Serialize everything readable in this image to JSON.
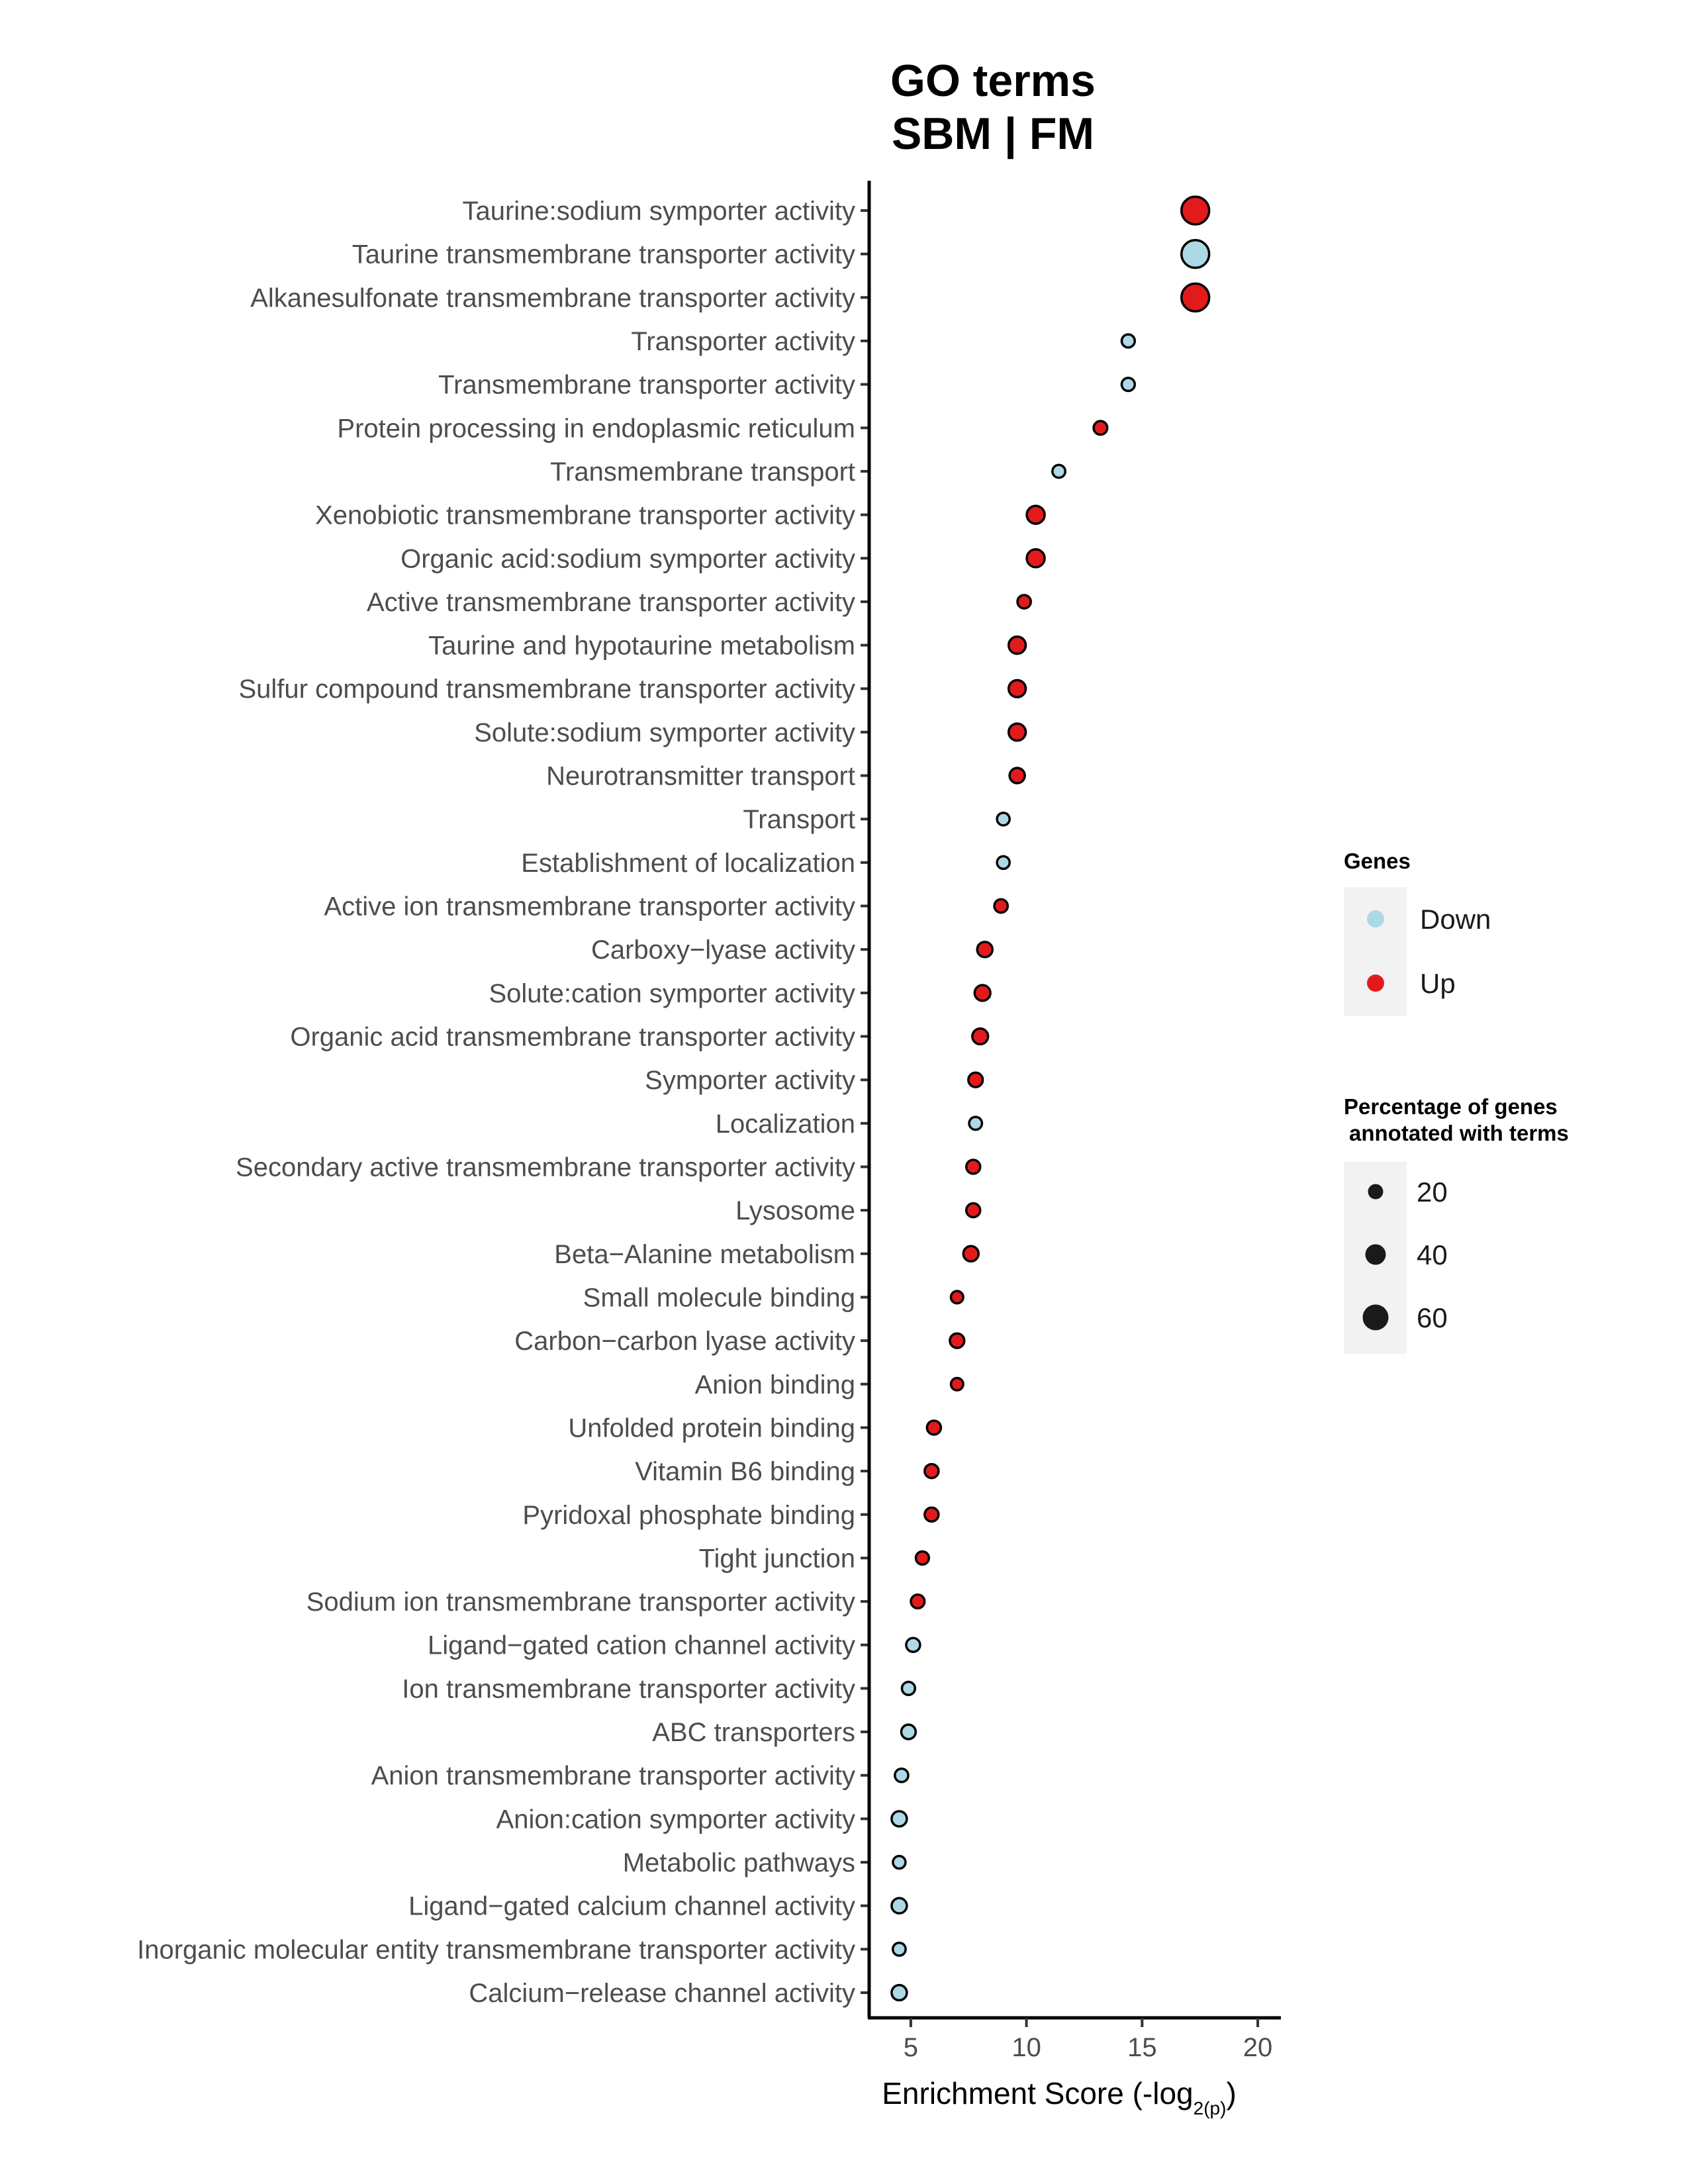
{
  "chart_data": {
    "type": "scatter",
    "title": [
      "GO terms",
      "SBM | FM"
    ],
    "xlabel_main": "Enrichment Score (-log",
    "xlabel_sub": "2(p)",
    "xlabel_end": ")",
    "xlim": [
      3.2,
      21
    ],
    "xticks": [
      5,
      10,
      15,
      20
    ],
    "colors": {
      "Down": "#add8e6",
      "Up": "#e31a1c"
    },
    "legend_color": {
      "title": "Genes",
      "entries": [
        "Down",
        "Up"
      ]
    },
    "legend_size": {
      "title_line1": "Percentage of genes",
      "title_line2": "annotated with terms",
      "entries": [
        20,
        40,
        60
      ]
    },
    "terms": [
      {
        "label": "Taurine:sodium symporter activity",
        "score": 17.3,
        "group": "Up",
        "pct": 67
      },
      {
        "label": "Taurine transmembrane transporter activity",
        "score": 17.3,
        "group": "Down",
        "pct": 67
      },
      {
        "label": "Alkanesulfonate transmembrane transporter activity",
        "score": 17.3,
        "group": "Up",
        "pct": 67
      },
      {
        "label": "Transporter activity",
        "score": 14.4,
        "group": "Down",
        "pct": 12
      },
      {
        "label": "Transmembrane transporter activity",
        "score": 14.4,
        "group": "Down",
        "pct": 12
      },
      {
        "label": "Protein processing in endoplasmic reticulum",
        "score": 13.2,
        "group": "Up",
        "pct": 14
      },
      {
        "label": "Transmembrane transport",
        "score": 11.4,
        "group": "Down",
        "pct": 11
      },
      {
        "label": "Xenobiotic transmembrane transporter activity",
        "score": 10.4,
        "group": "Up",
        "pct": 30
      },
      {
        "label": "Organic acid:sodium symporter activity",
        "score": 10.4,
        "group": "Up",
        "pct": 30
      },
      {
        "label": "Active transmembrane transporter activity",
        "score": 9.9,
        "group": "Up",
        "pct": 13
      },
      {
        "label": "Taurine and hypotaurine metabolism",
        "score": 9.6,
        "group": "Up",
        "pct": 27
      },
      {
        "label": "Sulfur compound transmembrane transporter activity",
        "score": 9.6,
        "group": "Up",
        "pct": 27
      },
      {
        "label": "Solute:sodium symporter activity",
        "score": 9.6,
        "group": "Up",
        "pct": 27
      },
      {
        "label": "Neurotransmitter transport",
        "score": 9.6,
        "group": "Up",
        "pct": 20
      },
      {
        "label": "Transport",
        "score": 9.0,
        "group": "Down",
        "pct": 10
      },
      {
        "label": "Establishment of localization",
        "score": 9.0,
        "group": "Down",
        "pct": 10
      },
      {
        "label": "Active ion transmembrane transporter activity",
        "score": 8.9,
        "group": "Up",
        "pct": 13
      },
      {
        "label": "Carboxy−lyase activity",
        "score": 8.2,
        "group": "Up",
        "pct": 20
      },
      {
        "label": "Solute:cation symporter activity",
        "score": 8.1,
        "group": "Up",
        "pct": 22
      },
      {
        "label": "Organic acid transmembrane transporter activity",
        "score": 8.0,
        "group": "Up",
        "pct": 22
      },
      {
        "label": "Symporter activity",
        "score": 7.8,
        "group": "Up",
        "pct": 17
      },
      {
        "label": "Localization",
        "score": 7.8,
        "group": "Down",
        "pct": 11
      },
      {
        "label": "Secondary active transmembrane transporter activity",
        "score": 7.7,
        "group": "Up",
        "pct": 15
      },
      {
        "label": "Lysosome",
        "score": 7.7,
        "group": "Up",
        "pct": 15
      },
      {
        "label": "Beta−Alanine metabolism",
        "score": 7.6,
        "group": "Up",
        "pct": 20
      },
      {
        "label": "Small molecule binding",
        "score": 7.0,
        "group": "Up",
        "pct": 9
      },
      {
        "label": "Carbon−carbon lyase activity",
        "score": 7.0,
        "group": "Up",
        "pct": 17
      },
      {
        "label": "Anion binding",
        "score": 7.0,
        "group": "Up",
        "pct": 9
      },
      {
        "label": "Unfolded protein binding",
        "score": 6.0,
        "group": "Up",
        "pct": 15
      },
      {
        "label": "Vitamin B6 binding",
        "score": 5.9,
        "group": "Up",
        "pct": 15
      },
      {
        "label": "Pyridoxal phosphate binding",
        "score": 5.9,
        "group": "Up",
        "pct": 15
      },
      {
        "label": "Tight junction",
        "score": 5.5,
        "group": "Up",
        "pct": 12
      },
      {
        "label": "Sodium ion transmembrane transporter activity",
        "score": 5.3,
        "group": "Up",
        "pct": 14
      },
      {
        "label": "Ligand−gated cation channel activity",
        "score": 5.1,
        "group": "Down",
        "pct": 15
      },
      {
        "label": "Ion transmembrane transporter activity",
        "score": 4.9,
        "group": "Down",
        "pct": 12
      },
      {
        "label": "ABC transporters",
        "score": 4.9,
        "group": "Down",
        "pct": 17
      },
      {
        "label": "Anion transmembrane transporter activity",
        "score": 4.6,
        "group": "Down",
        "pct": 13
      },
      {
        "label": "Anion:cation symporter activity",
        "score": 4.5,
        "group": "Down",
        "pct": 20
      },
      {
        "label": "Metabolic pathways",
        "score": 4.5,
        "group": "Down",
        "pct": 10
      },
      {
        "label": "Ligand−gated calcium channel activity",
        "score": 4.5,
        "group": "Down",
        "pct": 20
      },
      {
        "label": "Inorganic molecular entity transmembrane transporter activity",
        "score": 4.5,
        "group": "Down",
        "pct": 11
      },
      {
        "label": "Calcium−release channel activity",
        "score": 4.5,
        "group": "Down",
        "pct": 20
      }
    ]
  }
}
